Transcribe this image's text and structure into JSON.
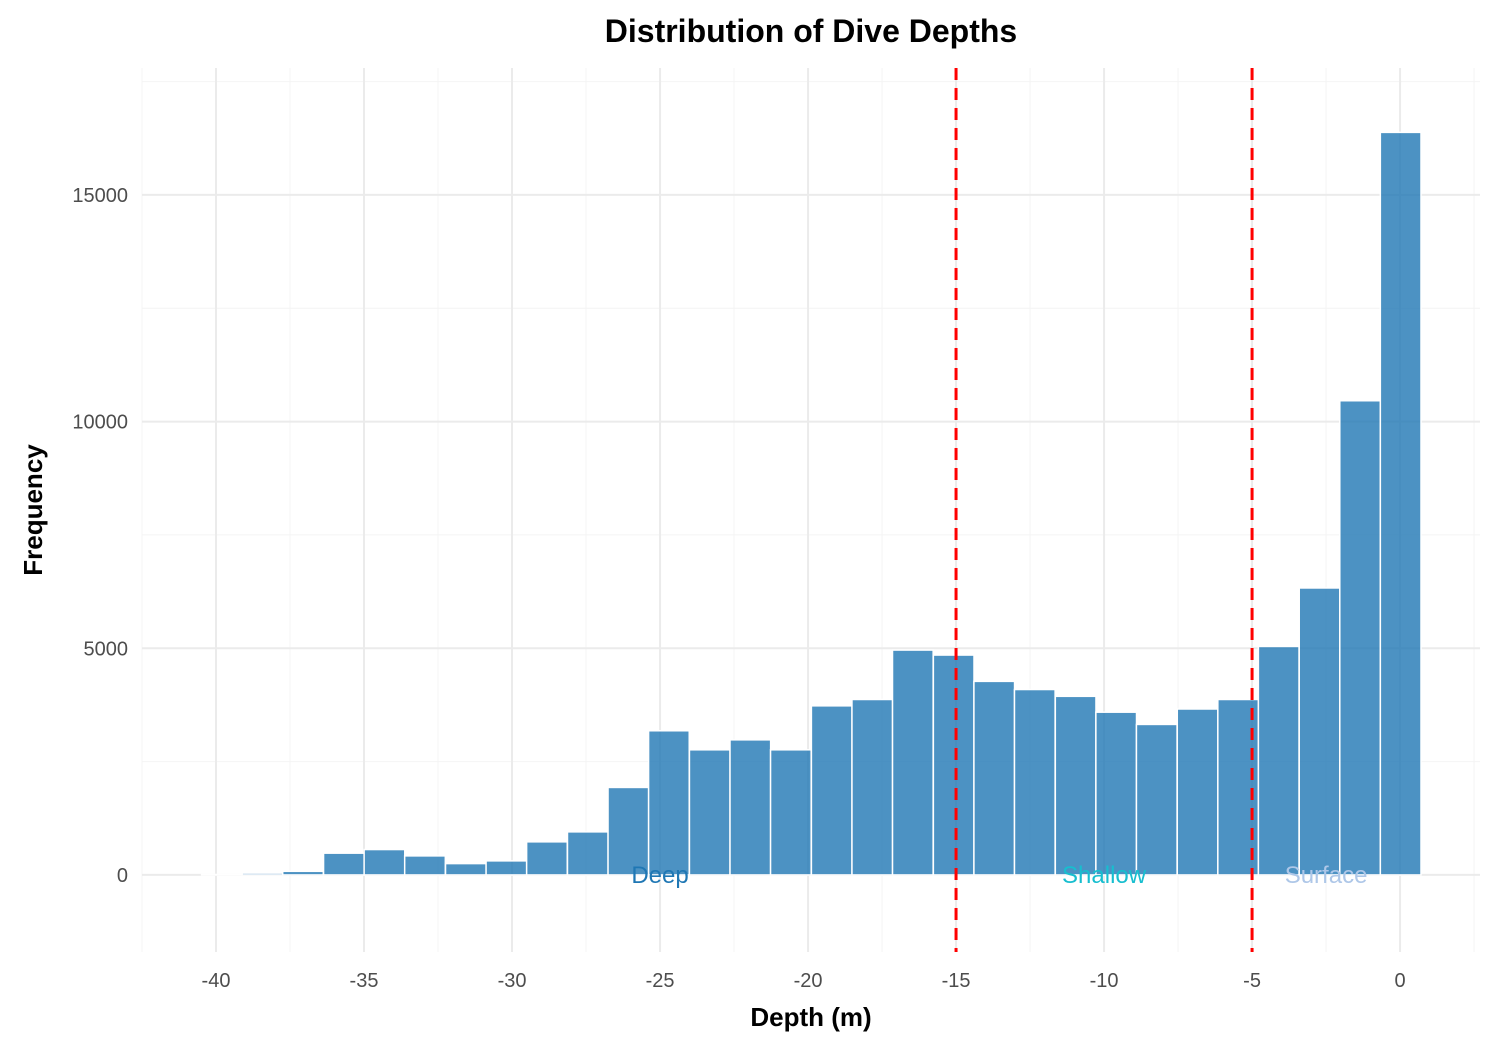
{
  "chart_data": {
    "type": "bar",
    "title": "Distribution of Dive Depths",
    "xlabel": "Depth (m)",
    "ylabel": "Frequency",
    "xlim": [
      -42.5,
      2.7
    ],
    "ylim": [
      -1700,
      17800
    ],
    "x_ticks": [
      -40,
      -35,
      -30,
      -25,
      -20,
      -15,
      -10,
      -5,
      0
    ],
    "x_tick_labels": [
      "-40",
      "-35",
      "-30",
      "-25",
      "-20",
      "-15",
      "-10",
      "-5",
      "0"
    ],
    "y_ticks": [
      0,
      5000,
      10000,
      15000
    ],
    "y_tick_labels": [
      "0",
      "5000",
      "10000",
      "15000"
    ],
    "bin_width": 1.373,
    "bins": [
      {
        "x": -39.8,
        "value": 10
      },
      {
        "x": -38.43,
        "value": 40
      },
      {
        "x": -37.06,
        "value": 80
      },
      {
        "x": -35.68,
        "value": 480
      },
      {
        "x": -34.31,
        "value": 560
      },
      {
        "x": -32.94,
        "value": 420
      },
      {
        "x": -31.56,
        "value": 250
      },
      {
        "x": -30.19,
        "value": 310
      },
      {
        "x": -28.82,
        "value": 730
      },
      {
        "x": -27.44,
        "value": 950
      },
      {
        "x": -26.07,
        "value": 1930
      },
      {
        "x": -24.7,
        "value": 3180
      },
      {
        "x": -23.32,
        "value": 2760
      },
      {
        "x": -21.95,
        "value": 2980
      },
      {
        "x": -20.58,
        "value": 2760
      },
      {
        "x": -19.2,
        "value": 3730
      },
      {
        "x": -17.83,
        "value": 3870
      },
      {
        "x": -16.46,
        "value": 4960
      },
      {
        "x": -15.08,
        "value": 4850
      },
      {
        "x": -13.71,
        "value": 4270
      },
      {
        "x": -12.34,
        "value": 4090
      },
      {
        "x": -10.96,
        "value": 3940
      },
      {
        "x": -9.59,
        "value": 3590
      },
      {
        "x": -8.22,
        "value": 3320
      },
      {
        "x": -6.84,
        "value": 3660
      },
      {
        "x": -5.47,
        "value": 3870
      },
      {
        "x": -4.1,
        "value": 5040
      },
      {
        "x": -2.72,
        "value": 6330
      },
      {
        "x": -1.35,
        "value": 10460
      },
      {
        "x": 0.02,
        "value": 16380
      }
    ],
    "reference_lines": [
      -15,
      -5
    ],
    "annotations": [
      {
        "text": "Deep",
        "x": -25,
        "y": 0,
        "color": "#1f77b4"
      },
      {
        "text": "Shallow",
        "x": -10,
        "y": 0,
        "color": "#17becf"
      },
      {
        "text": "Surface",
        "x": -2.5,
        "y": 0,
        "color": "#aec7e8"
      }
    ],
    "grid": true,
    "legend": "none",
    "colors": {
      "bar": "#1f77b4",
      "reference_line": "#ff0000"
    }
  }
}
